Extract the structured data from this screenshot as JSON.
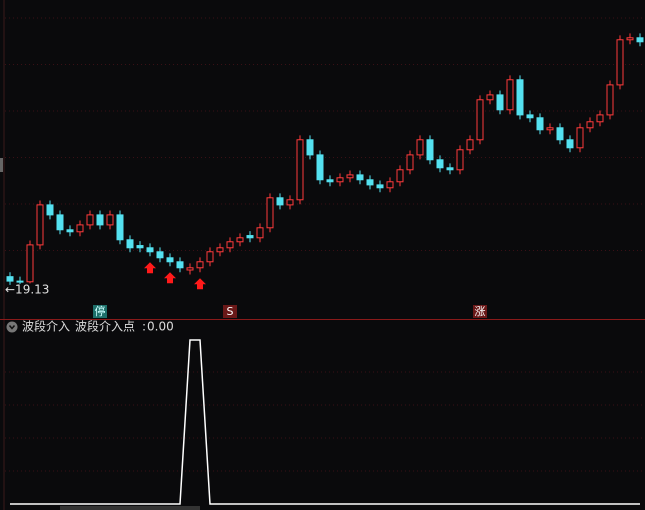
{
  "chart_data": [
    {
      "type": "candlestick",
      "categories": [
        null,
        null,
        null,
        null,
        null,
        null,
        null,
        null,
        null,
        "停",
        null,
        null,
        null,
        null,
        null,
        null,
        null,
        null,
        null,
        null,
        null,
        null,
        "S",
        null,
        null,
        null,
        null,
        null,
        null,
        null,
        null,
        null,
        null,
        null,
        null,
        null,
        null,
        null,
        null,
        null,
        null,
        null,
        null,
        null,
        null,
        null,
        null,
        "涨",
        null,
        null,
        null,
        null,
        null,
        null,
        null,
        null,
        null,
        null,
        null,
        null,
        null,
        null,
        null,
        null
      ],
      "open": [
        19.5,
        19.3,
        19.27,
        20.93,
        22.73,
        22.28,
        21.61,
        21.52,
        21.83,
        22.28,
        21.83,
        22.28,
        21.16,
        20.9,
        20.8,
        20.62,
        20.35,
        20.17,
        19.8,
        19.9,
        20.17,
        20.62,
        20.8,
        21.07,
        21.35,
        21.25,
        21.7,
        23.05,
        22.73,
        22.96,
        25.66,
        24.98,
        23.86,
        23.77,
        23.95,
        24.08,
        23.86,
        23.63,
        23.5,
        23.77,
        24.31,
        24.98,
        25.66,
        24.76,
        24.4,
        24.31,
        25.21,
        25.66,
        27.46,
        27.68,
        27.01,
        28.36,
        26.78,
        26.65,
        26.11,
        26.2,
        25.66,
        25.3,
        26.2,
        26.47,
        26.78,
        28.13,
        30.16,
        30.25
      ],
      "high": [
        19.7,
        19.5,
        21.13,
        22.93,
        22.93,
        22.48,
        21.81,
        22.03,
        22.48,
        22.48,
        22.48,
        22.48,
        21.36,
        21.1,
        21.0,
        20.82,
        20.55,
        20.37,
        20.1,
        20.37,
        20.82,
        21.0,
        21.27,
        21.45,
        21.55,
        21.9,
        23.25,
        23.25,
        23.16,
        25.86,
        25.86,
        25.18,
        24.06,
        24.15,
        24.28,
        24.28,
        24.06,
        23.83,
        23.97,
        24.51,
        25.18,
        25.86,
        25.86,
        24.96,
        24.6,
        25.41,
        25.86,
        27.66,
        27.88,
        27.88,
        28.56,
        28.56,
        26.98,
        26.85,
        26.4,
        26.4,
        25.86,
        26.4,
        26.67,
        26.98,
        28.33,
        30.36,
        30.45,
        30.45
      ],
      "low": [
        19.13,
        19.17,
        19.2,
        20.73,
        22.08,
        21.41,
        21.32,
        21.32,
        21.63,
        21.63,
        21.63,
        20.96,
        20.6,
        20.6,
        20.42,
        20.15,
        19.97,
        19.7,
        19.6,
        19.7,
        19.97,
        20.42,
        20.6,
        20.87,
        21.05,
        21.05,
        21.5,
        22.53,
        22.53,
        22.76,
        24.78,
        23.66,
        23.57,
        23.57,
        23.75,
        23.66,
        23.43,
        23.3,
        23.3,
        23.57,
        24.11,
        24.78,
        24.56,
        24.2,
        24.11,
        24.11,
        25.01,
        25.46,
        27.26,
        26.81,
        26.81,
        26.58,
        26.45,
        25.91,
        25.91,
        25.46,
        25.1,
        25.1,
        26.0,
        26.27,
        26.58,
        27.93,
        29.96,
        29.87
      ],
      "close": [
        19.3,
        19.27,
        20.93,
        22.73,
        22.28,
        21.61,
        21.52,
        21.83,
        22.28,
        21.83,
        22.28,
        21.16,
        20.8,
        20.8,
        20.62,
        20.35,
        20.17,
        19.9,
        19.9,
        20.17,
        20.62,
        20.8,
        21.07,
        21.25,
        21.25,
        21.7,
        23.05,
        22.73,
        22.96,
        25.66,
        24.98,
        23.86,
        23.77,
        23.95,
        24.08,
        23.86,
        23.63,
        23.5,
        23.77,
        24.31,
        24.98,
        25.66,
        24.76,
        24.4,
        24.31,
        25.21,
        25.66,
        27.46,
        27.68,
        27.01,
        28.36,
        26.78,
        26.65,
        26.11,
        26.2,
        25.66,
        25.3,
        26.2,
        26.47,
        26.78,
        28.13,
        30.16,
        30.25,
        30.07
      ],
      "signals": [
        null,
        null,
        null,
        null,
        null,
        null,
        null,
        null,
        null,
        null,
        null,
        null,
        null,
        null,
        20.42,
        null,
        19.97,
        null,
        null,
        19.7,
        null,
        null,
        null,
        null,
        null,
        null,
        null,
        null,
        null,
        null,
        null,
        null,
        null,
        null,
        null,
        null,
        null,
        null,
        null,
        null,
        null,
        null,
        null,
        null,
        null,
        null,
        null,
        null,
        null,
        null,
        null,
        null,
        null,
        null,
        null,
        null,
        null,
        null,
        null,
        null,
        null,
        null,
        null,
        null
      ],
      "low_marker": {
        "value": 19.13,
        "label": "←19.13"
      },
      "up_color": "#ff3b3b",
      "down_color": "#54e1f0",
      "signal_color": "#ff1a1a",
      "ylim": [
        18.45,
        31.5
      ],
      "grid": true
    },
    {
      "type": "line",
      "title": "波段介入",
      "series": [
        {
          "name": "波段介入点",
          "color": "#ffffff",
          "last_label": "0.00",
          "values": [
            0,
            0,
            0,
            0,
            0,
            0,
            0,
            0,
            0,
            0,
            0,
            0,
            0,
            0,
            0,
            0,
            0,
            0,
            1,
            1,
            0,
            0,
            0,
            0,
            0,
            0,
            0,
            0,
            0,
            0,
            0,
            0,
            0,
            0,
            0,
            0,
            0,
            0,
            0,
            0,
            0,
            0,
            0,
            0,
            0,
            0,
            0,
            0,
            0,
            0,
            0,
            0,
            0,
            0,
            0,
            0,
            0,
            0,
            0,
            0,
            0,
            0,
            0,
            0
          ]
        }
      ],
      "ylim": [
        0,
        1
      ],
      "grid": true
    }
  ]
}
